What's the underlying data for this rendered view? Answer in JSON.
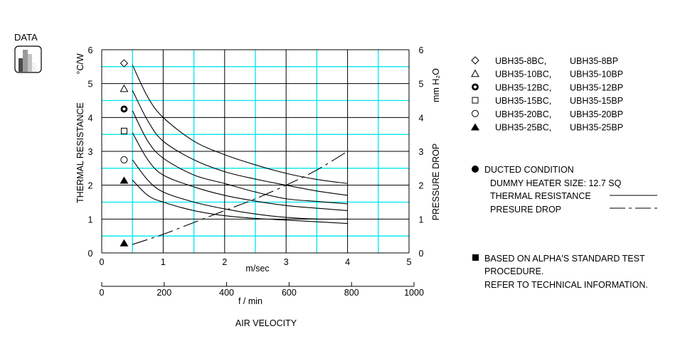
{
  "badge": {
    "label": "DATA",
    "icon": "bar-chart-icon"
  },
  "colors": {
    "grid_major": "#000000",
    "grid_minor": "#00e5ee",
    "curve": "#000000"
  },
  "chart_data": {
    "type": "line",
    "xlabel": "m/sec",
    "xlabel2": "f / min",
    "axis_title": "AIR VELOCITY",
    "ylabel_left": "THERMAL RESISTANCE",
    "ylabel_left_unit": "°C/W",
    "ylabel_right": "PRESSURE DROP",
    "ylabel_right_unit": "mm H₂O",
    "xlim": [
      0,
      5
    ],
    "ylim": [
      0,
      6
    ],
    "x2lim": [
      0,
      1000
    ],
    "x_ticks": [
      "0",
      "1",
      "2",
      "3",
      "4",
      "5"
    ],
    "x2_ticks": [
      "0",
      "200",
      "400",
      "600",
      "800",
      "1000"
    ],
    "y_ticks": [
      "0",
      "1",
      "2",
      "3",
      "4",
      "5",
      "6"
    ],
    "y_right_ticks": [
      "0",
      "1",
      "2",
      "3",
      "4",
      "5",
      "6"
    ],
    "grid": true,
    "series": [
      {
        "name": "UBH35-8BC, UBH35-8BP",
        "marker": "diamond",
        "marker_y": 5.6,
        "x": [
          0.5,
          0.75,
          1,
          1.5,
          2,
          2.5,
          3,
          3.5,
          4
        ],
        "y": [
          5.55,
          4.6,
          4.0,
          3.3,
          2.9,
          2.6,
          2.35,
          2.17,
          2.05
        ]
      },
      {
        "name": "UBH35-10BC, UBH35-10BP",
        "marker": "triangle-open",
        "marker_y": 4.85,
        "x": [
          0.5,
          0.75,
          1,
          1.5,
          2,
          2.5,
          3,
          3.5,
          4
        ],
        "y": [
          4.8,
          3.9,
          3.3,
          2.75,
          2.4,
          2.18,
          2.0,
          1.83,
          1.7
        ]
      },
      {
        "name": "UBH35-12BC, UBH35-12BP",
        "marker": "ring-bold",
        "marker_y": 4.25,
        "x": [
          0.5,
          0.75,
          1,
          1.5,
          2,
          2.5,
          3,
          3.5,
          4
        ],
        "y": [
          4.2,
          3.3,
          2.8,
          2.3,
          2.05,
          1.8,
          1.6,
          1.52,
          1.45
        ]
      },
      {
        "name": "UBH35-15BC, UBH35-15BP",
        "marker": "square",
        "marker_y": 3.6,
        "x": [
          0.5,
          0.75,
          1,
          1.5,
          2,
          2.5,
          3,
          3.5,
          4
        ],
        "y": [
          3.55,
          2.75,
          2.3,
          1.95,
          1.7,
          1.53,
          1.4,
          1.32,
          1.25
        ]
      },
      {
        "name": "UBH35-20BC, UBH35-20BP",
        "marker": "circle-open",
        "marker_y": 2.75,
        "x": [
          0.5,
          0.75,
          1,
          1.5,
          2,
          2.5,
          3,
          3.5,
          4
        ],
        "y": [
          2.75,
          2.15,
          1.8,
          1.5,
          1.3,
          1.15,
          1.05,
          1.0,
          1.0
        ]
      },
      {
        "name": "UBH35-25BC, UBH35-25BP",
        "marker": "triangle-filled",
        "marker_y": 2.15,
        "x": [
          0.5,
          0.75,
          1,
          1.5,
          2,
          2.5,
          3,
          3.5,
          4
        ],
        "y": [
          2.15,
          1.7,
          1.5,
          1.25,
          1.1,
          1.02,
          0.97,
          0.92,
          0.87
        ]
      }
    ],
    "pressure_drop": {
      "marker": "triangle-filled",
      "marker_y": 0.3,
      "x": [
        0.5,
        1,
        1.5,
        2,
        2.5,
        3,
        3.5,
        4
      ],
      "y": [
        0.25,
        0.55,
        0.9,
        1.25,
        1.6,
        2.0,
        2.45,
        3.0
      ]
    },
    "marker_x": 0.37
  },
  "legend": {
    "items": [
      {
        "a": "UBH35-8BC,",
        "b": "UBH35-8BP",
        "marker": "diamond"
      },
      {
        "a": "UBH35-10BC,",
        "b": "UBH35-10BP",
        "marker": "triangle-open"
      },
      {
        "a": "UBH35-12BC,",
        "b": "UBH35-12BP",
        "marker": "ring-bold"
      },
      {
        "a": "UBH35-15BC,",
        "b": "UBH35-15BP",
        "marker": "square"
      },
      {
        "a": "UBH35-20BC,",
        "b": "UBH35-20BP",
        "marker": "circle-open"
      },
      {
        "a": "UBH35-25BC,",
        "b": "UBH35-25BP",
        "marker": "triangle-filled"
      }
    ],
    "ducted": "DUCTED CONDITION",
    "heater": "DUMMY HEATER SIZE:  12.7 SQ",
    "thermal": "THERMAL RESISTANCE",
    "pressure": "PRESURE DROP"
  },
  "note": {
    "line1": "BASED ON ALPHA'S STANDARD TEST",
    "line2": "PROCEDURE.",
    "line3": "REFER TO TECHNICAL INFORMATION."
  }
}
